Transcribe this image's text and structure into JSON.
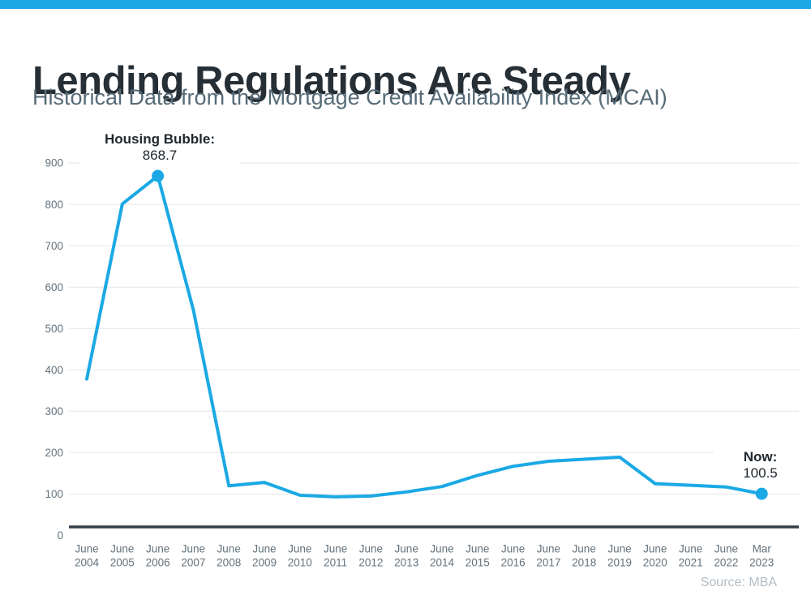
{
  "page": {
    "accent_color": "#1BA9E5",
    "background_color": "#FFFFFF",
    "title_color": "#272F36",
    "subtitle_color": "#566B77",
    "axis_text_color": "#63727C",
    "gridline_color": "#E3E6E9",
    "axis_line_color": "#333F48",
    "annotation_text_color": "#21282E",
    "source_text_color": "#B2BDC5"
  },
  "header": {
    "title": "Lending Regulations Are Steady",
    "subtitle": "Historical Data from the Mortgage Credit Availability Index (MCAI)"
  },
  "annotations": {
    "peak": {
      "label": "Housing Bubble:",
      "value": "868.7"
    },
    "now": {
      "label": "Now:",
      "value": "100.5"
    }
  },
  "footer": {
    "source": "Source: MBA"
  },
  "chart_data": {
    "type": "line",
    "title": "Lending Regulations Are Steady",
    "subtitle": "Historical Data from the Mortgage Credit Availability Index (MCAI)",
    "xlabel": "",
    "ylabel": "",
    "categories": [
      "June 2004",
      "June 2005",
      "June 2006",
      "June 2007",
      "June 2008",
      "June 2009",
      "June 2010",
      "June 2011",
      "June 2012",
      "June 2013",
      "June 2014",
      "June 2015",
      "June 2016",
      "June 2017",
      "June 2018",
      "June 2019",
      "June 2020",
      "June 2021",
      "June 2022",
      "Mar 2023"
    ],
    "series": [
      {
        "name": "Mortgage Credit Availability Index",
        "values": [
          378,
          801,
          868.7,
          545,
          120,
          128,
          97,
          93,
          95,
          105,
          118,
          145,
          167,
          179,
          184,
          189,
          125,
          121,
          117,
          100.5
        ]
      }
    ],
    "ylim": [
      0,
      900
    ],
    "yticks": [
      0,
      100,
      200,
      300,
      400,
      500,
      600,
      700,
      800,
      900
    ],
    "grid": true,
    "legend": false,
    "line_color": "#1BA9E5",
    "marker_points": [
      {
        "index": 2,
        "category": "June 2006",
        "value": 868.7,
        "annotation": "Housing Bubble: 868.7"
      },
      {
        "index": 19,
        "category": "Mar 2023",
        "value": 100.5,
        "annotation": "Now: 100.5"
      }
    ],
    "source": "Source: MBA"
  }
}
